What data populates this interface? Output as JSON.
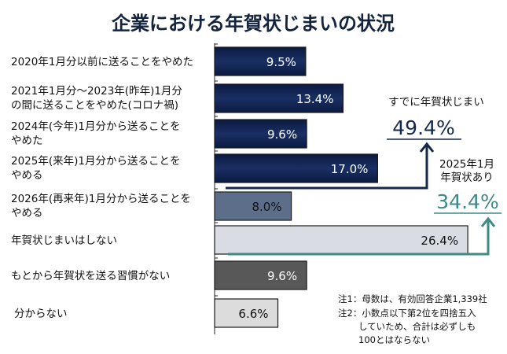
{
  "chart_data": {
    "type": "bar",
    "orientation": "horizontal",
    "title": "企業における年賀状じまいの状況",
    "categories": [
      [
        "2020年1月分以前に送ることをやめた"
      ],
      [
        "2021年1月分～2023年(昨年)1月分",
        "の間に送ることをやめた(コロナ禍)"
      ],
      [
        "2024年(今年)1月分から送ることを",
        "やめた"
      ],
      [
        "2025年(来年)1月分から送ることを",
        "やめる"
      ],
      [
        "2026年(再来年)1月分から送ることを",
        "やめる"
      ],
      [
        "年賀状じまいはしない"
      ],
      [
        "もとから年賀状を送る習慣がない"
      ],
      [
        "分からない"
      ]
    ],
    "values": [
      9.5,
      13.4,
      9.6,
      17.0,
      8.0,
      26.4,
      9.6,
      6.6
    ],
    "value_labels": [
      "9.5%",
      "13.4%",
      "9.6%",
      "17.0%",
      "8.0%",
      "26.4%",
      "9.6%",
      "6.6%"
    ],
    "bar_colors": [
      "#0e2150",
      "#0e2150",
      "#0e2150",
      "#0e2150",
      "#5d6e8a",
      "#d9dde3",
      "#585858",
      "#dcdcdc"
    ],
    "label_colors": [
      "#ffffff",
      "#ffffff",
      "#ffffff",
      "#ffffff",
      "#111111",
      "#111111",
      "#ffffff",
      "#111111"
    ],
    "annotations": {
      "already": {
        "label": "すでに年賀状じまい",
        "value": "49.4%",
        "color": "#14284b"
      },
      "still": {
        "label": [
          "2025年1月",
          "年賀状あり"
        ],
        "value": "34.4%",
        "color": "#3e8a86"
      }
    },
    "notes": [
      "注1：母数は、有効回答企業1,339社",
      "注2：小数点以下第2位を四捨五入",
      "していため、合計は必ずしも",
      "100とはならない"
    ]
  }
}
